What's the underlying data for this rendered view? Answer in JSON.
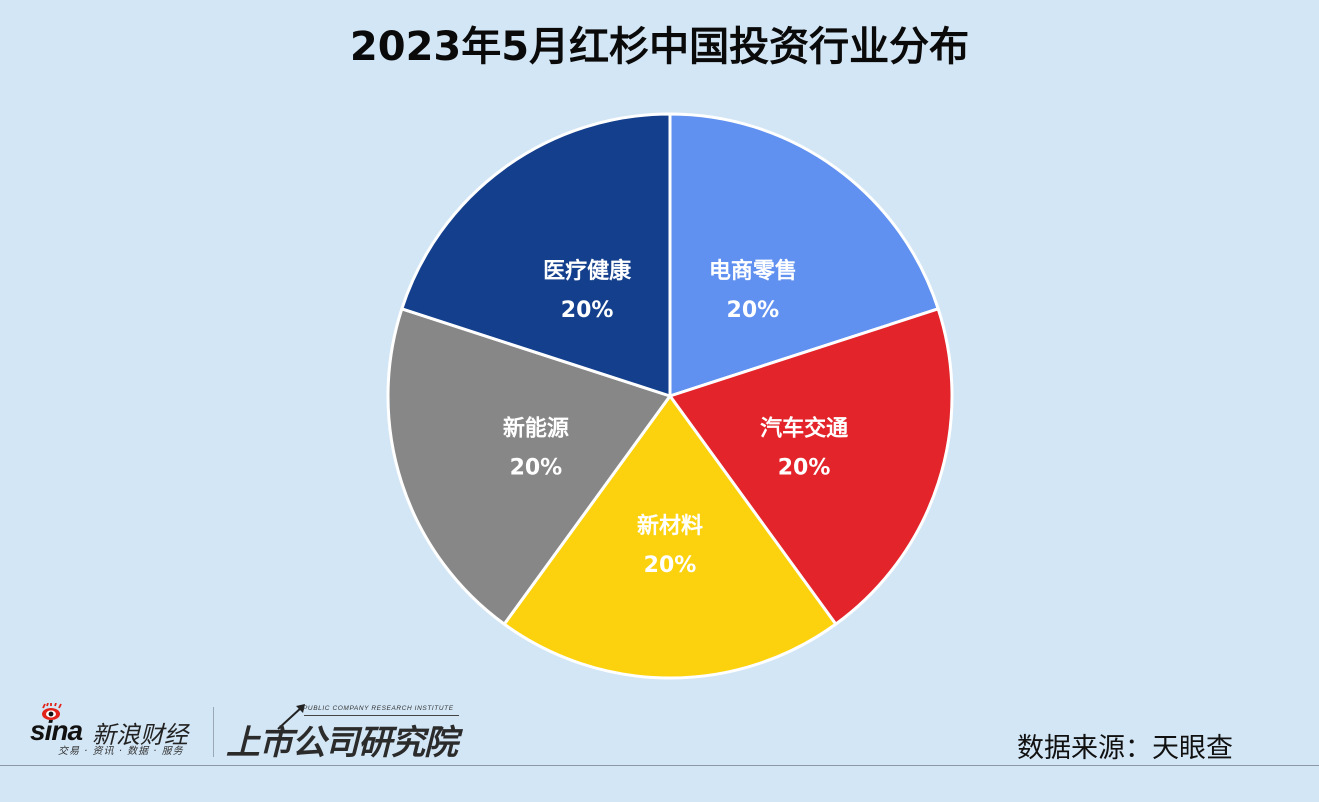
{
  "title": "2023年5月红杉中国投资行业分布",
  "chart_data": {
    "type": "pie",
    "title": "2023年5月红杉中国投资行业分布",
    "start_angle_deg": 0,
    "direction": "clockwise",
    "categories": [
      "电商零售",
      "汽车交通",
      "新材料",
      "新能源",
      "医疗健康"
    ],
    "values": [
      20,
      20,
      20,
      20,
      20
    ],
    "unit": "%",
    "colors": [
      "#6090f0",
      "#e3242b",
      "#fcd20e",
      "#878787",
      "#133f8c"
    ],
    "labels": [
      {
        "name": "电商零售",
        "pct": "20%"
      },
      {
        "name": "汽车交通",
        "pct": "20%"
      },
      {
        "name": "新材料",
        "pct": "20%"
      },
      {
        "name": "新能源",
        "pct": "20%"
      },
      {
        "name": "医疗健康",
        "pct": "20%"
      }
    ],
    "legend": "none",
    "data_labels": "inside"
  },
  "footer": {
    "source": "数据来源：天眼查",
    "sina": {
      "wordmark": "sina",
      "name": "新浪财经",
      "tagline": "交易 · 资讯 · 数据 · 服务"
    },
    "institute": {
      "name": "上市公司研究院",
      "english": "PUBLIC COMPANY RESEARCH INSTITUTE"
    }
  },
  "colors": {
    "background": "#d3e6f5",
    "slice_border": "#ffffff",
    "label_text": "#ffffff"
  }
}
